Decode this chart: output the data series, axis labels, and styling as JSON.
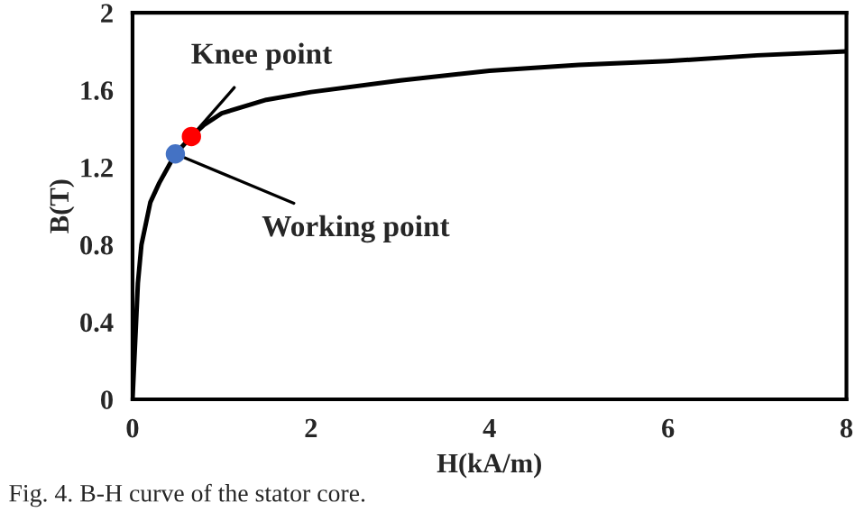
{
  "chart_data": {
    "type": "line",
    "xlabel": "H(kA/m)",
    "ylabel": "B(T)",
    "xlim": [
      0,
      8
    ],
    "ylim": [
      0,
      2
    ],
    "xticks": [
      0,
      2,
      4,
      6,
      8
    ],
    "yticks": [
      0,
      {
        "value": 0.4,
        "label": "0.4"
      },
      {
        "value": 0.8,
        "label": "0.8"
      },
      {
        "value": 1.2,
        "label": "1.2"
      },
      {
        "value": 1.6,
        "label": "1.6"
      },
      2
    ],
    "grid": false,
    "legend": false,
    "series": [
      {
        "color": "#000000",
        "x": [
          0,
          0.03,
          0.06,
          0.1,
          0.2,
          0.3,
          0.48,
          0.66,
          0.8,
          1,
          1.5,
          2,
          3,
          4,
          5,
          6,
          7,
          8
        ],
        "values": [
          0,
          0.3,
          0.6,
          0.8,
          1.02,
          1.12,
          1.27,
          1.36,
          1.42,
          1.48,
          1.55,
          1.59,
          1.65,
          1.7,
          1.73,
          1.75,
          1.78,
          1.8
        ]
      },
      {
        "type": "scatter",
        "color": "#4472c4",
        "marker": "circle",
        "x": [
          0.48
        ],
        "values": [
          1.27
        ]
      },
      {
        "type": "scatter",
        "color": "#ff0000",
        "marker": "circle",
        "x": [
          0.66
        ],
        "values": [
          1.36
        ]
      }
    ],
    "annotations": [
      {
        "text": "Knee point",
        "x": 0.66,
        "y": 1.36
      },
      {
        "text": "Working point",
        "x": 0.48,
        "y": 1.27
      },
      "Fig. 4. B-H curve of the stator core."
    ]
  }
}
